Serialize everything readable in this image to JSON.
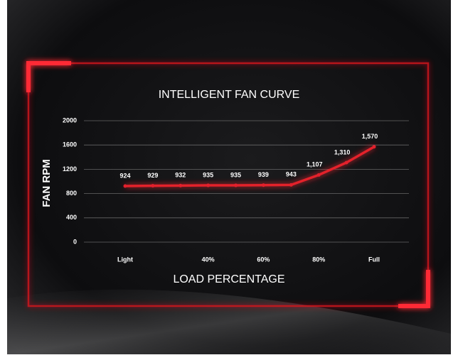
{
  "chart_data": {
    "type": "line",
    "title": "INTELLIGENT FAN CURVE",
    "x_label": "LOAD PERCENTAGE",
    "y_label": "FAN RPM",
    "categories": [
      "Light",
      null,
      null,
      "40%",
      null,
      "60%",
      null,
      "80%",
      null,
      "Full"
    ],
    "series": [
      {
        "name": "Fan RPM",
        "color": "#e3202c",
        "values": [
          924,
          929,
          932,
          935,
          935,
          939,
          943,
          1107,
          1310,
          1570
        ],
        "value_labels": [
          "924",
          "929",
          "932",
          "935",
          "935",
          "939",
          "943",
          "1,107",
          "1,310",
          "1,570"
        ]
      }
    ],
    "ylim": [
      0,
      2000
    ],
    "yticks": [
      0,
      400,
      800,
      1200,
      1600,
      2000
    ],
    "grid": true
  }
}
